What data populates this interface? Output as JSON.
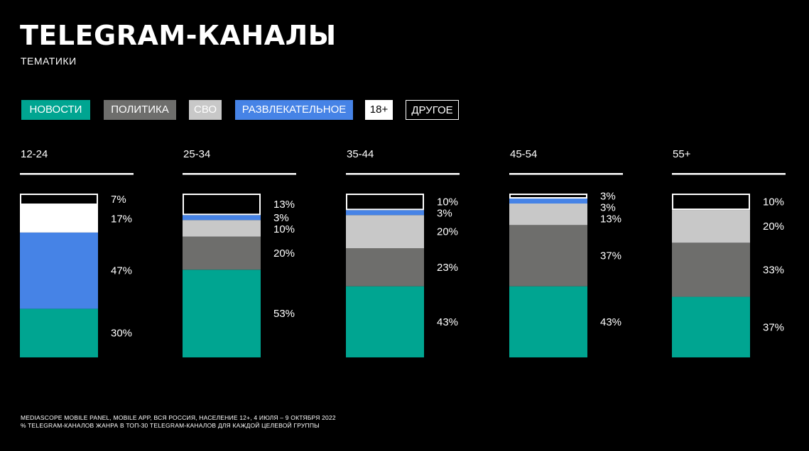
{
  "header": {
    "title": "TELEGRAM-КАНАЛЫ",
    "subtitle": "ТЕМАТИКИ"
  },
  "footer": {
    "line1": "MEDIASCOPE MOBILE PANEL, MOBILE APP, ВСЯ РОССИЯ, НАСЕЛЕНИЕ 12+, 4 ИЮЛЯ – 9 ОКТЯБРЯ 2022",
    "line2": "% TELEGRAM-КАНАЛОВ ЖАНРА В ТОП-30 TELEGRAM-КАНАЛОВ ДЛЯ КАЖДОЙ ЦЕЛЕВОЙ ГРУППЫ"
  },
  "colors": {
    "background": "#000000",
    "news": "#00a591",
    "politics": "#6e6e6c",
    "svo": "#c8c8c8",
    "entertainment": "#4683e6",
    "adult": "#ffffff",
    "other": "#000000"
  },
  "chart_data": {
    "type": "bar",
    "stacked": true,
    "normalized_percent": true,
    "title": "TELEGRAM-КАНАЛЫ",
    "subtitle": "ТЕМАТИКИ",
    "categories": [
      "12-24",
      "25-34",
      "35-44",
      "45-54",
      "55+"
    ],
    "series": [
      {
        "name": "НОВОСТИ",
        "color": "#00a591",
        "values": [
          30,
          53,
          43,
          43,
          37
        ]
      },
      {
        "name": "ПОЛИТИКА",
        "color": "#6e6e6c",
        "values": [
          0,
          20,
          23,
          37,
          33
        ]
      },
      {
        "name": "СВО",
        "color": "#c8c8c8",
        "values": [
          0,
          10,
          20,
          13,
          20
        ]
      },
      {
        "name": "РАЗВЛЕКАТЕЛЬНОЕ",
        "color": "#4683e6",
        "values": [
          47,
          3,
          3,
          3,
          0
        ]
      },
      {
        "name": "18+",
        "color": "#ffffff",
        "values": [
          17,
          0,
          0,
          0,
          0
        ]
      },
      {
        "name": "ДРУГОЕ",
        "color": "#000000",
        "outline": "#ffffff",
        "values": [
          7,
          13,
          10,
          3,
          10
        ]
      }
    ],
    "value_labels": [
      [
        "7%",
        "17%",
        "47%",
        "30%"
      ],
      [
        "13%",
        "3%",
        "10%",
        "20%",
        "53%"
      ],
      [
        "10%",
        "3%",
        "20%",
        "23%",
        "43%"
      ],
      [
        "3%",
        "3%",
        "13%",
        "37%",
        "43%"
      ],
      [
        "10%",
        "20%",
        "33%",
        "37%"
      ]
    ],
    "legend_position": "top",
    "grid": false,
    "ylim": [
      0,
      100
    ]
  }
}
